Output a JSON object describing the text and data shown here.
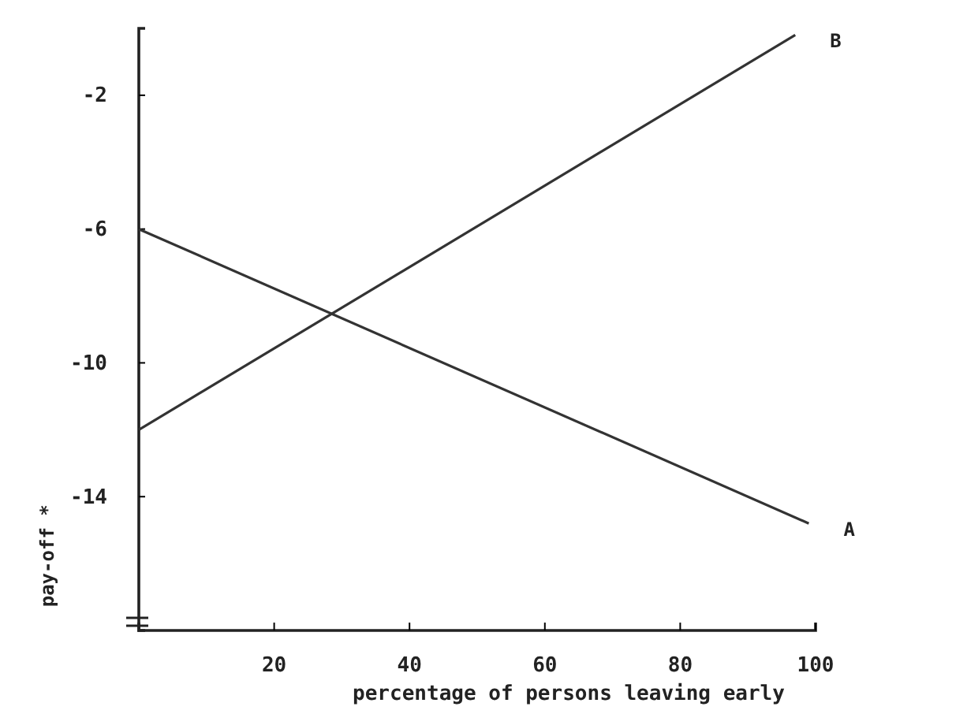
{
  "chart_data": {
    "type": "line",
    "xlabel": "percentage of persons leaving early",
    "ylabel": "pay-off *",
    "xlim": [
      0,
      100
    ],
    "xticks": [
      20,
      40,
      60,
      80,
      100
    ],
    "ylim": [
      -18,
      0
    ],
    "yticks": [
      -2,
      -6,
      -10,
      -14
    ],
    "series": [
      {
        "name": "A",
        "color": "#333333",
        "x": [
          0,
          99
        ],
        "values": [
          -6,
          -14.8
        ]
      },
      {
        "name": "B",
        "color": "#333333",
        "x": [
          0,
          97
        ],
        "values": [
          -12,
          -0.2
        ]
      }
    ],
    "line_style": "solid"
  }
}
